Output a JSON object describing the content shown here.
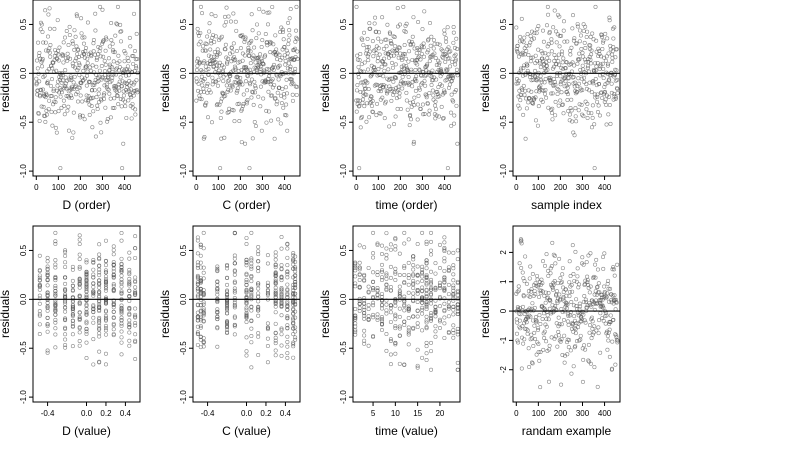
{
  "chart_data": [
    {
      "type": "scatter",
      "xlabel": "D (order)",
      "ylabel": "residuals",
      "xlim": [
        -15,
        470
      ],
      "ylim": [
        -1.05,
        0.75
      ],
      "xticks": [
        0,
        100,
        200,
        300,
        400
      ],
      "yticks": [
        -1.0,
        -0.5,
        0.0,
        0.5
      ],
      "ytick_labels": [
        "-1.0",
        "-0.5",
        "0.0",
        "0.5"
      ],
      "hline": 0,
      "n": 460,
      "x_kind": "order",
      "seed": 11
    },
    {
      "type": "scatter",
      "xlabel": "C (order)",
      "ylabel": "residuals",
      "xlim": [
        -15,
        470
      ],
      "ylim": [
        -1.05,
        0.75
      ],
      "xticks": [
        0,
        100,
        200,
        300,
        400
      ],
      "yticks": [
        -1.0,
        -0.5,
        0.0,
        0.5
      ],
      "ytick_labels": [
        "-1.0",
        "-0.5",
        "0.0",
        "0.5"
      ],
      "hline": 0,
      "n": 460,
      "x_kind": "order",
      "seed": 23
    },
    {
      "type": "scatter",
      "xlabel": "time (order)",
      "ylabel": "residuals",
      "xlim": [
        -15,
        470
      ],
      "ylim": [
        -1.05,
        0.75
      ],
      "xticks": [
        0,
        100,
        200,
        300,
        400
      ],
      "yticks": [
        -1.0,
        -0.5,
        0.0,
        0.5
      ],
      "ytick_labels": [
        "-1.0",
        "-0.5",
        "0.0",
        "0.5"
      ],
      "hline": 0,
      "n": 460,
      "x_kind": "order",
      "seed": 37
    },
    {
      "type": "scatter",
      "xlabel": "sample index",
      "ylabel": "residuals",
      "xlim": [
        -15,
        470
      ],
      "ylim": [
        -1.05,
        0.75
      ],
      "xticks": [
        0,
        100,
        200,
        300,
        400
      ],
      "yticks": [
        -1.0,
        -0.5,
        0.0,
        0.5
      ],
      "ytick_labels": [
        "-1.0",
        "-0.5",
        "0.0",
        "0.5"
      ],
      "hline": 0,
      "n": 460,
      "x_kind": "order",
      "seed": 41
    },
    {
      "type": "scatter",
      "xlabel": "D (value)",
      "ylabel": "residuals",
      "xlim": [
        -0.55,
        0.55
      ],
      "ylim": [
        -1.05,
        0.75
      ],
      "xticks": [
        -0.4,
        0.0,
        0.2,
        0.4
      ],
      "xtick_labels": [
        "-0.4",
        "0.0",
        "0.2",
        "0.4"
      ],
      "yticks": [
        -1.0,
        -0.5,
        0.0,
        0.5
      ],
      "ytick_labels": [
        "-1.0",
        "-0.5",
        "0.0",
        "0.5"
      ],
      "hline": 0,
      "n": 460,
      "x_kind": "levels",
      "levels": [
        -0.48,
        -0.4,
        -0.32,
        -0.22,
        -0.14,
        -0.07,
        0.0,
        0.07,
        0.13,
        0.2,
        0.28,
        0.36,
        0.44,
        0.5
      ],
      "seed": 53
    },
    {
      "type": "scatter",
      "xlabel": "C (value)",
      "ylabel": "residuals",
      "xlim": [
        -0.55,
        0.55
      ],
      "ylim": [
        -1.05,
        0.75
      ],
      "xticks": [
        -0.4,
        0.0,
        0.2,
        0.4
      ],
      "xtick_labels": [
        "-0.4",
        "0.0",
        "0.2",
        "0.4"
      ],
      "yticks": [
        -1.0,
        -0.5,
        0.0,
        0.5
      ],
      "ytick_labels": [
        "-1.0",
        "-0.5",
        "0.0",
        "0.5"
      ],
      "hline": 0,
      "n": 460,
      "x_kind": "levels",
      "levels": [
        -0.5,
        -0.47,
        -0.44,
        -0.3,
        -0.2,
        -0.12,
        0.0,
        0.05,
        0.12,
        0.22,
        0.3,
        0.36,
        0.42,
        0.48,
        0.5
      ],
      "seed": 61
    },
    {
      "type": "scatter",
      "xlabel": "time (value)",
      "ylabel": "residuals",
      "xlim": [
        0.5,
        24.5
      ],
      "ylim": [
        -1.05,
        0.75
      ],
      "xticks": [
        5,
        10,
        15,
        20
      ],
      "yticks": [
        -1.0,
        -0.5,
        0.0,
        0.5
      ],
      "ytick_labels": [
        "-1.0",
        "-0.5",
        "0.0",
        "0.5"
      ],
      "hline": 0,
      "n": 460,
      "x_kind": "levels",
      "levels": [
        1,
        2,
        3,
        4,
        5,
        6,
        7,
        8,
        9,
        10,
        11,
        12,
        13,
        14,
        15,
        16,
        17,
        18,
        19,
        20,
        21,
        22,
        23,
        24
      ],
      "seed": 71
    },
    {
      "type": "scatter",
      "xlabel": "randam example",
      "ylabel": "residuals",
      "xlim": [
        -15,
        470
      ],
      "ylim": [
        -3.1,
        2.9
      ],
      "xticks": [
        0,
        100,
        200,
        300,
        400
      ],
      "yticks": [
        -2,
        -1,
        0,
        1,
        2
      ],
      "ytick_labels": [
        "-2",
        "-1",
        "0",
        "1",
        "2"
      ],
      "hline": 0,
      "n": 460,
      "x_kind": "order",
      "y_kind": "normal",
      "seed": 83
    }
  ]
}
